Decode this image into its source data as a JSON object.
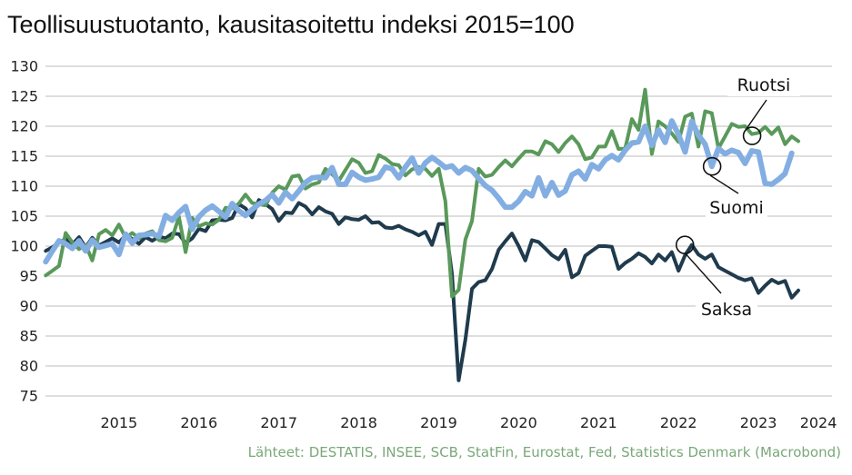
{
  "chart_data": {
    "type": "line",
    "title": "Teollisuustuotanto, kausitasoitettu indeksi 2015=100",
    "source": "Lähteet: DESTATIS, INSEE, SCB, StatFin, Eurostat, Fed, Statistics Denmark (Macrobond)",
    "xlabel": "",
    "ylabel": "",
    "ylim": [
      75,
      130
    ],
    "yticks": [
      75,
      80,
      85,
      90,
      95,
      100,
      105,
      110,
      115,
      120,
      125,
      130
    ],
    "xlim": [
      2014.58,
      2024.42
    ],
    "xticks": [
      {
        "label": "2015",
        "x": 2015.0
      },
      {
        "label": "2016",
        "x": 2016.0
      },
      {
        "label": "2017",
        "x": 2017.0
      },
      {
        "label": "2018",
        "x": 2018.0
      },
      {
        "label": "2019",
        "x": 2019.0
      },
      {
        "label": "2020",
        "x": 2020.0
      },
      {
        "label": "2021",
        "x": 2021.0
      },
      {
        "label": "2022",
        "x": 2022.0
      },
      {
        "label": "2023",
        "x": 2023.0
      },
      {
        "label": "2024",
        "x": 2023.75
      }
    ],
    "grid": true,
    "legend": "none",
    "x_start": 2014.583,
    "x_step": 0.08333,
    "series": [
      {
        "name": "Saksa",
        "color": "#1f3b4d",
        "values": [
          99.2,
          99.8,
          100.6,
          101.2,
          100.3,
          101.5,
          99.8,
          101.4,
          100.1,
          100.7,
          101.3,
          100.6,
          101.8,
          101.2,
          100.4,
          101.5,
          100.9,
          101.6,
          101.3,
          102.1,
          102.0,
          100.5,
          101.3,
          102.9,
          102.5,
          104.3,
          104.4,
          104.3,
          104.7,
          107.0,
          106.3,
          104.8,
          107.7,
          107.0,
          106.2,
          104.2,
          105.6,
          105.5,
          107.2,
          106.6,
          105.3,
          106.5,
          105.8,
          105.4,
          103.7,
          104.8,
          104.5,
          104.4,
          105.0,
          103.9,
          104.0,
          103.1,
          103.0,
          103.4,
          102.8,
          102.4,
          101.8,
          102.4,
          100.2,
          103.7,
          103.7,
          95.3,
          77.6,
          84.4,
          92.9,
          94.0,
          94.3,
          96.2,
          99.4,
          100.8,
          102.1,
          100.0,
          97.6,
          101.0,
          100.7,
          99.6,
          98.5,
          97.8,
          99.4,
          94.8,
          95.5,
          98.4,
          99.2,
          100.0,
          100.0,
          99.9,
          96.2,
          97.2,
          97.9,
          98.8,
          98.2,
          97.1,
          98.6,
          97.6,
          99.0,
          95.9,
          98.5,
          100.2,
          98.6,
          97.9,
          98.6,
          96.5,
          95.9,
          95.3,
          94.7,
          94.3,
          94.6,
          92.2,
          93.4,
          94.4,
          93.8,
          94.2,
          91.4,
          92.6
        ]
      },
      {
        "name": "Ruotsi",
        "color": "#59995a",
        "values": [
          95.1,
          95.9,
          96.7,
          102.2,
          100.6,
          99.5,
          100.2,
          97.6,
          102.0,
          102.7,
          101.8,
          103.6,
          101.4,
          102.2,
          101.3,
          102.1,
          102.5,
          101.0,
          100.8,
          101.4,
          104.9,
          99.0,
          104.7,
          103.3,
          103.8,
          103.6,
          104.4,
          106.4,
          106.3,
          107.1,
          108.6,
          107.2,
          107.0,
          106.8,
          108.9,
          110.0,
          109.4,
          111.6,
          111.8,
          109.6,
          110.3,
          110.6,
          112.9,
          112.0,
          110.9,
          112.7,
          114.5,
          113.9,
          112.2,
          112.5,
          115.2,
          114.6,
          113.7,
          113.5,
          111.8,
          112.8,
          113.2,
          112.9,
          111.7,
          112.9,
          107.5,
          91.6,
          92.7,
          101.1,
          104.2,
          112.9,
          111.6,
          111.9,
          113.2,
          114.3,
          113.3,
          114.6,
          115.8,
          115.8,
          115.3,
          117.5,
          117.0,
          115.7,
          117.2,
          118.3,
          117.0,
          114.5,
          114.8,
          116.6,
          116.6,
          119.2,
          116.2,
          116.3,
          121.2,
          119.4,
          126.1,
          115.4,
          120.8,
          120.0,
          118.8,
          117.4,
          121.6,
          122.1,
          116.6,
          122.5,
          122.2,
          116.3,
          118.3,
          120.4,
          119.9,
          120.0,
          118.7,
          118.9,
          119.9,
          118.7,
          119.8,
          117.0,
          118.3,
          117.5
        ]
      },
      {
        "name": "Suomi",
        "color": "#83aee2",
        "values": [
          97.4,
          99.2,
          100.9,
          100.4,
          99.6,
          100.9,
          99.2,
          101.0,
          99.8,
          100.1,
          100.4,
          98.6,
          102.0,
          100.5,
          101.8,
          101.9,
          102.1,
          101.6,
          105.1,
          104.3,
          105.6,
          106.6,
          102.8,
          104.9,
          106.0,
          106.7,
          105.8,
          104.8,
          107.1,
          105.9,
          105.1,
          106.1,
          107.0,
          107.6,
          108.6,
          107.2,
          109.0,
          107.9,
          109.2,
          110.6,
          111.4,
          111.5,
          111.4,
          113.1,
          110.3,
          110.3,
          112.3,
          111.5,
          111.0,
          111.2,
          111.5,
          113.2,
          112.9,
          111.4,
          113.2,
          114.7,
          112.2,
          113.9,
          114.8,
          114.0,
          113.1,
          113.4,
          112.2,
          113.1,
          112.6,
          111.3,
          110.1,
          109.3,
          108.0,
          106.5,
          106.5,
          107.5,
          109.1,
          108.4,
          111.4,
          108.4,
          110.6,
          108.5,
          109.2,
          111.9,
          112.5,
          111.2,
          113.6,
          112.9,
          114.4,
          115.1,
          114.4,
          116.0,
          117.2,
          117.4,
          120.0,
          116.8,
          119.4,
          117.3,
          120.9,
          118.6,
          115.7,
          120.8,
          118.5,
          117.0,
          113.3,
          116.3,
          115.4,
          116.0,
          115.6,
          113.8,
          115.9,
          115.7,
          110.5,
          110.3,
          111.1,
          112.1,
          115.5
        ]
      }
    ],
    "annotations": [
      {
        "label": "Ruotsi",
        "x": 2023.42,
        "y": 118.4
      },
      {
        "label": "Suomi",
        "x": 2022.92,
        "y": 113.3
      },
      {
        "label": "Saksa",
        "x": 2022.58,
        "y": 100.2
      }
    ]
  }
}
